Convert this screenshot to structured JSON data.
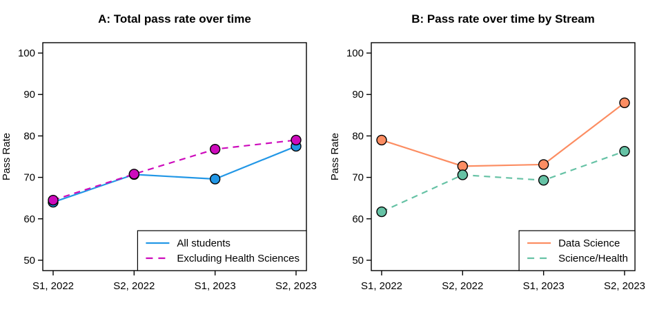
{
  "page": {
    "background_color": "#ffffff",
    "axis_color": "#000000",
    "text_color": "#000000"
  },
  "chart_data": [
    {
      "type": "line",
      "panel_label": "A",
      "title": "A: Total pass rate over time",
      "xlabel": "",
      "ylabel": "Pass Rate",
      "categories": [
        "S1, 2022",
        "S2, 2022",
        "S1, 2023",
        "S2, 2023"
      ],
      "yticks": [
        50,
        60,
        70,
        80,
        90,
        100
      ],
      "ylim": [
        47.5,
        102.5
      ],
      "grid": false,
      "legend_position": "bottom-right",
      "series": [
        {
          "name": "All students",
          "values": [
            64.0,
            70.7,
            69.6,
            77.5
          ],
          "color": "#2297E6",
          "line_style": "solid",
          "marker": "circle",
          "marker_outline": "#000000"
        },
        {
          "name": "Excluding Health Sciences",
          "values": [
            64.5,
            70.8,
            76.8,
            79.0
          ],
          "color": "#CD0BBC",
          "line_style": "dashed",
          "marker": "circle",
          "marker_outline": "#000000"
        }
      ]
    },
    {
      "type": "line",
      "panel_label": "B",
      "title": "B: Pass rate over time by Stream",
      "xlabel": "",
      "ylabel": "Pass Rate",
      "categories": [
        "S1, 2022",
        "S2, 2022",
        "S1, 2023",
        "S2, 2023"
      ],
      "yticks": [
        50,
        60,
        70,
        80,
        90,
        100
      ],
      "ylim": [
        47.5,
        102.5
      ],
      "grid": false,
      "legend_position": "bottom-right",
      "series": [
        {
          "name": "Data Science",
          "values": [
            79.0,
            72.7,
            73.1,
            88.0
          ],
          "color": "#FC8D62",
          "line_style": "solid",
          "marker": "circle",
          "marker_outline": "#000000"
        },
        {
          "name": "Science/Health",
          "values": [
            61.7,
            70.6,
            69.3,
            76.3
          ],
          "color": "#66C2A5",
          "line_style": "dashed",
          "marker": "circle",
          "marker_outline": "#000000"
        }
      ]
    }
  ]
}
